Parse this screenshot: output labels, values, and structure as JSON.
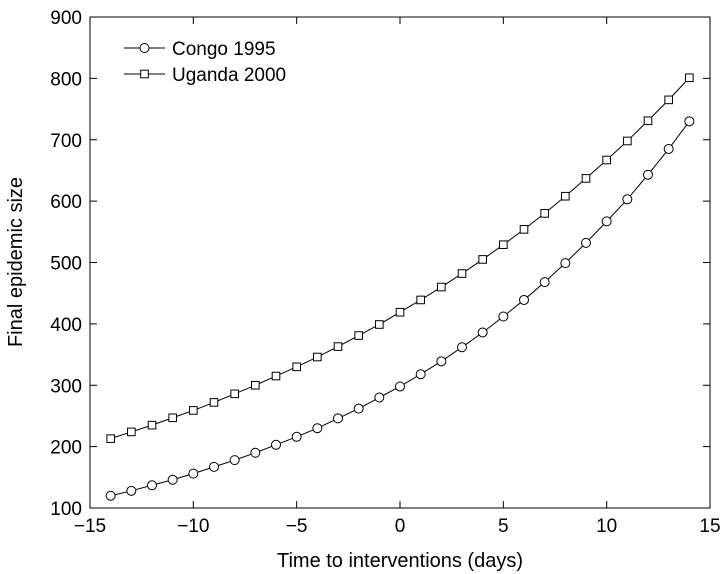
{
  "chart_data": {
    "type": "line",
    "title": "",
    "xlabel": "Time to interventions (days)",
    "ylabel": "Final epidemic size",
    "xlim": [
      -15,
      15
    ],
    "ylim": [
      100,
      900
    ],
    "xticks": [
      -15,
      -10,
      -5,
      0,
      5,
      10,
      15
    ],
    "xtick_labels": [
      "−15",
      "−10",
      "−5",
      "0",
      "5",
      "10",
      "15"
    ],
    "yticks": [
      100,
      200,
      300,
      400,
      500,
      600,
      700,
      800,
      900
    ],
    "ytick_labels": [
      "100",
      "200",
      "300",
      "400",
      "500",
      "600",
      "700",
      "800",
      "900"
    ],
    "grid": false,
    "legend_position": "top-left",
    "x": [
      -14,
      -13,
      -12,
      -11,
      -10,
      -9,
      -8,
      -7,
      -6,
      -5,
      -4,
      -3,
      -2,
      -1,
      0,
      1,
      2,
      3,
      4,
      5,
      6,
      7,
      8,
      9,
      10,
      11,
      12,
      13,
      14
    ],
    "series": [
      {
        "name": "Congo 1995",
        "marker": "circle",
        "values": [
          120,
          128,
          137,
          146,
          156,
          167,
          178,
          190,
          203,
          216,
          230,
          246,
          262,
          280,
          298,
          318,
          339,
          362,
          386,
          412,
          439,
          468,
          499,
          532,
          567,
          603,
          643,
          685,
          730
        ]
      },
      {
        "name": "Uganda 2000",
        "marker": "square",
        "values": [
          213,
          224,
          235,
          247,
          259,
          272,
          286,
          300,
          315,
          330,
          346,
          363,
          381,
          399,
          419,
          439,
          460,
          482,
          505,
          529,
          554,
          580,
          608,
          637,
          667,
          698,
          731,
          765,
          801
        ]
      }
    ]
  }
}
